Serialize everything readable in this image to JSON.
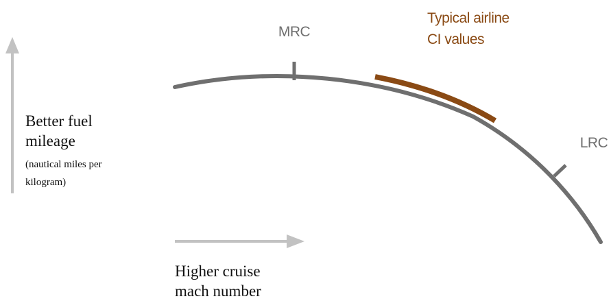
{
  "colors": {
    "curve": "#6f6f6f",
    "highlight": "#8a4a14",
    "arrow": "#bdbdbd",
    "point_label": "#6f6f6f",
    "highlight_label": "#8a4a14",
    "text": "#111111"
  },
  "points": {
    "mrc": {
      "label": "MRC"
    },
    "lrc": {
      "label": "LRC"
    }
  },
  "highlight": {
    "label_line1": "Typical airline",
    "label_line2": "CI values"
  },
  "y_axis": {
    "line1": "Better fuel",
    "line2": "mileage",
    "line3": "(nautical miles per",
    "line4": "kilogram)"
  },
  "x_axis": {
    "line1": "Higher cruise",
    "line2": "mach number"
  }
}
